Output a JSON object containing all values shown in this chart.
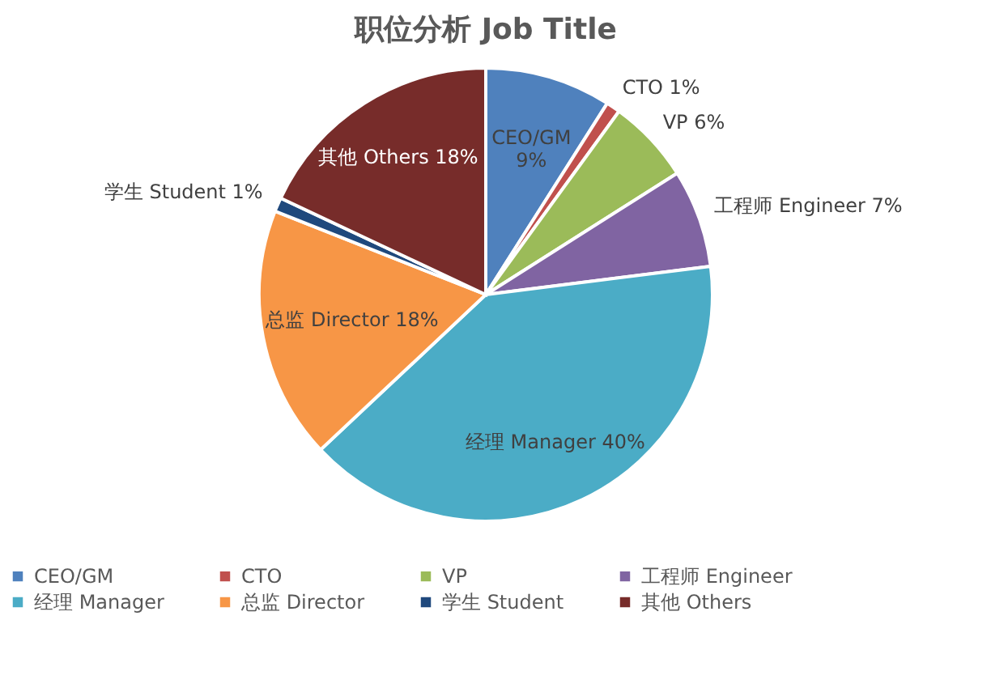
{
  "chart_data": {
    "type": "pie",
    "title": "职位分析 Job Title",
    "categories": [
      "CEO/GM",
      "CTO",
      "VP",
      "工程师 Engineer",
      "经理 Manager",
      "总监 Director",
      "学生 Student",
      "其他 Others"
    ],
    "values": [
      9,
      1,
      6,
      7,
      40,
      18,
      1,
      18
    ],
    "colors": [
      "#4f81bd",
      "#c0504d",
      "#9bbb59",
      "#8064a2",
      "#4bacc6",
      "#f79646",
      "#1f497d",
      "#772c2a"
    ],
    "value_labels": [
      "CEO/GM 9%",
      "CTO 1%",
      "VP 6%",
      "工程师 Engineer 7%",
      "经理 Manager 40%",
      "总监 Director 18%",
      "学生 Student 1%",
      "其他 Others 18%"
    ],
    "legend": "bottom"
  }
}
